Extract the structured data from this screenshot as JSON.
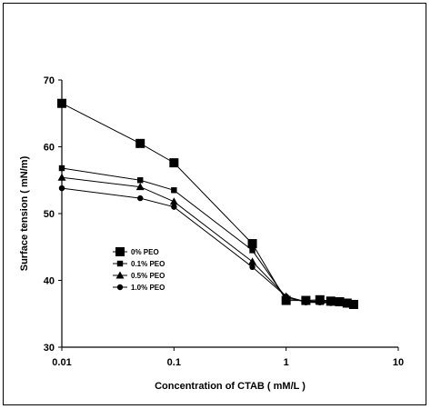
{
  "chart_data": {
    "type": "line",
    "title": "",
    "xlabel": "Concentration of CTAB ( mM/L )",
    "ylabel": "Surface tension ( mN/m)",
    "x_scale": "log",
    "xlim": [
      0.01,
      10
    ],
    "ylim": [
      30,
      70
    ],
    "x_ticks": [
      "0.01",
      "0.1",
      "1",
      "10"
    ],
    "y_ticks": [
      "30",
      "40",
      "50",
      "60",
      "70"
    ],
    "grid": false,
    "legend_position": "center-left",
    "series": [
      {
        "name": "0% PEO",
        "marker": "square-large",
        "x": [
          0.01,
          0.05,
          0.1,
          0.5,
          1.0,
          1.5,
          2.0,
          2.5,
          3.0,
          3.5,
          4.0
        ],
        "y": [
          66.5,
          60.5,
          57.6,
          45.5,
          37.0,
          37.0,
          37.1,
          36.9,
          36.8,
          36.6,
          36.4
        ]
      },
      {
        "name": "0.1% PEO",
        "marker": "square-small",
        "x": [
          0.01,
          0.05,
          0.1,
          0.5,
          1.0,
          1.5,
          2.0,
          2.5,
          3.0,
          3.5
        ],
        "y": [
          56.8,
          55.0,
          53.5,
          44.5,
          37.3,
          36.9,
          36.9,
          36.8,
          36.7,
          36.5
        ]
      },
      {
        "name": "0.5% PEO",
        "marker": "triangle",
        "x": [
          0.01,
          0.05,
          0.1,
          0.5,
          1.0,
          1.5,
          2.0,
          2.5
        ],
        "y": [
          55.4,
          54.0,
          51.8,
          42.8,
          37.6,
          36.8,
          36.8,
          36.7
        ]
      },
      {
        "name": "1.0% PEO",
        "marker": "circle",
        "x": [
          0.01,
          0.05,
          0.1,
          0.5,
          1.0,
          1.5,
          2.0,
          2.5
        ],
        "y": [
          53.8,
          52.3,
          51.0,
          42.0,
          37.6,
          36.7,
          36.7,
          36.6
        ]
      }
    ]
  }
}
